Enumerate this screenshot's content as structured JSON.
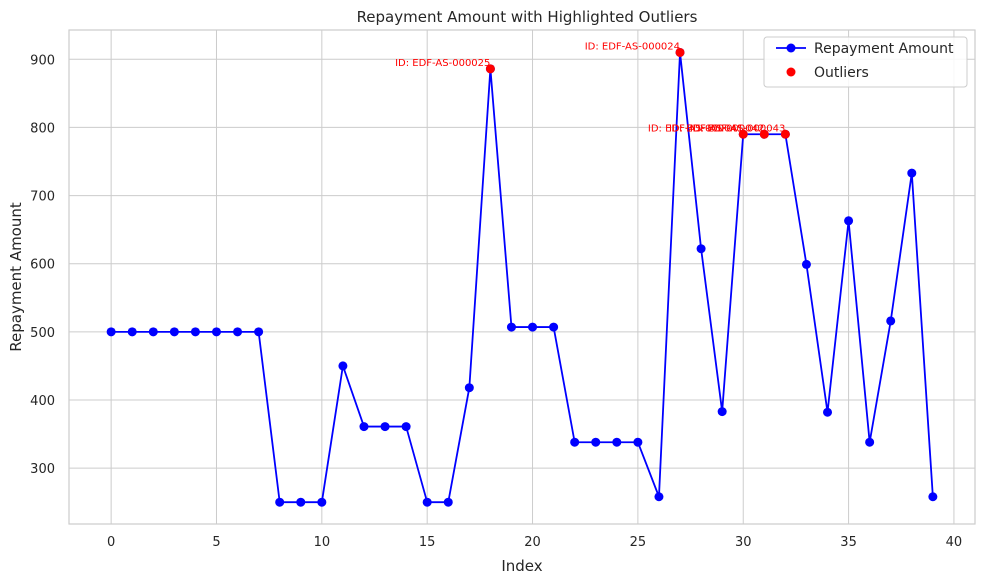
{
  "chart_data": {
    "type": "line",
    "title": "Repayment Amount with Highlighted Outliers",
    "xlabel": "Index",
    "ylabel": "Repayment Amount",
    "xlim": [
      -2,
      41
    ],
    "ylim": [
      218,
      943
    ],
    "xticks": [
      0,
      5,
      10,
      15,
      20,
      25,
      30,
      35,
      40
    ],
    "yticks": [
      300,
      400,
      500,
      600,
      700,
      800,
      900
    ],
    "grid": true,
    "legend_position": "top-right",
    "series": [
      {
        "name": "Repayment Amount",
        "color": "#0000ff",
        "marker": "circle",
        "x": [
          0,
          1,
          2,
          3,
          4,
          5,
          6,
          7,
          8,
          9,
          10,
          11,
          12,
          13,
          14,
          15,
          16,
          17,
          18,
          19,
          20,
          21,
          22,
          23,
          24,
          25,
          26,
          27,
          28,
          29,
          30,
          31,
          32,
          33,
          34,
          35,
          36,
          37,
          38,
          39
        ],
        "y": [
          500,
          500,
          500,
          500,
          500,
          500,
          500,
          500,
          250,
          250,
          250,
          450,
          361,
          361,
          361,
          250,
          250,
          418,
          886,
          507,
          507,
          507,
          338,
          338,
          338,
          338,
          258,
          910,
          622,
          383,
          790,
          790,
          790,
          599,
          382,
          663,
          338,
          516,
          733,
          258
        ]
      },
      {
        "name": "Outliers",
        "color": "#ff0000",
        "marker": "circle",
        "x": [
          18,
          27,
          30,
          31,
          32
        ],
        "y": [
          886,
          910,
          790,
          790,
          790
        ]
      }
    ],
    "annotations": [
      {
        "x": 18,
        "y": 886,
        "text": "ID: EDF-AS-000025"
      },
      {
        "x": 27,
        "y": 910,
        "text": "ID: EDF-AS-000024"
      },
      {
        "x": 30,
        "y": 790,
        "text": "ID: EDF-AS-000041"
      },
      {
        "x": 31,
        "y": 790,
        "text": "ID: EDF-AS-000042"
      },
      {
        "x": 32,
        "y": 790,
        "text": "ID: EDF-AS-000043"
      }
    ]
  }
}
